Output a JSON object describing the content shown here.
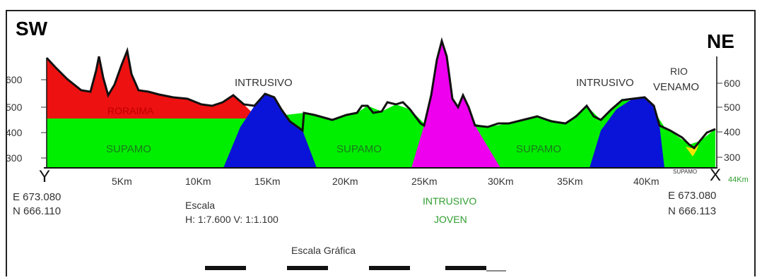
{
  "corners": {
    "left": "SW",
    "right": "NE"
  },
  "elevation_ticks": {
    "left": [
      "600",
      "500",
      "400",
      "300"
    ],
    "right": [
      "600",
      "500",
      "400",
      "300"
    ]
  },
  "distance_ticks": [
    "5Km",
    "10Km",
    "15Km",
    "20Km",
    "25Km",
    "30Km",
    "35Km",
    "40Km"
  ],
  "end_distance": "44Km",
  "endpoints": {
    "start": "Y",
    "end": "X"
  },
  "units": {
    "left": [
      "Rorrima",
      "Supamo",
      "Intrusivo",
      "Supamo",
      "Intrusivo Joven",
      "Supamo",
      "Intrusivo",
      "Supamo",
      "Rio Venamo"
    ],
    "labels": {
      "roraima": "RORAIMA",
      "supamo": "SUPAMO",
      "intrusivo_left": "INTRUSIVO",
      "intrusivo_right": "INTRUSIVO",
      "rio_venamo_1": "RIO",
      "rio_venamo_2": "VENAMO",
      "intrusivo_joven_1": "INTRUSIVO",
      "intrusivo_joven_2": "JOVEN",
      "supamo_small": "SUPAMO"
    }
  },
  "coordinates": {
    "left": {
      "e": "E  673.080",
      "n": "N  666.110"
    },
    "right": {
      "e": "E  673.080",
      "n": "N  666.113"
    }
  },
  "scale": {
    "title": "Escala",
    "values": "H: 1:7.600  V: 1:1.100",
    "graphic": "Escala Gráfica"
  },
  "colors": {
    "roraima": "#ee1111",
    "supamo": "#00ee00",
    "intrusivo": "#0a14d8",
    "intrusivo_joven": "#ee00ee",
    "rio": "#f2e600"
  }
}
